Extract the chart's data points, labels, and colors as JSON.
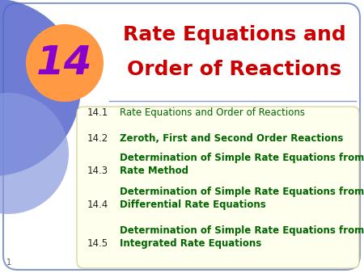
{
  "title_line1": "Rate Equations and",
  "title_line2": "Order of Reactions",
  "chapter_num": "14",
  "title_color": "#cc0000",
  "chapter_num_color": "#8800cc",
  "bg_color": "#ffffff",
  "content_bg": "#ffffee",
  "items": [
    {
      "num": "14.1",
      "text": "Rate Equations and Order of Reactions",
      "bold": false
    },
    {
      "num": "14.2",
      "text": "Zeroth, First and Second Order Reactions",
      "bold": true
    },
    {
      "num": "14.3",
      "text": "Determination of Simple Rate Equations from Initial\nRate Method",
      "bold": true
    },
    {
      "num": "14.4",
      "text": "Determination of Simple Rate Equations from\nDifferential Rate Equations",
      "bold": true
    },
    {
      "num": "14.5",
      "text": "Determination of Simple Rate Equations from\nIntegrated Rate Equations",
      "bold": true
    }
  ],
  "item_num_color": "#222222",
  "item_text_color": "#006600",
  "border_color": "#8899cc",
  "blue_large_color": "#5566cc",
  "blue_small_color": "#8899cc",
  "orange_color": "#ff9944",
  "separator_color": "#8899cc"
}
